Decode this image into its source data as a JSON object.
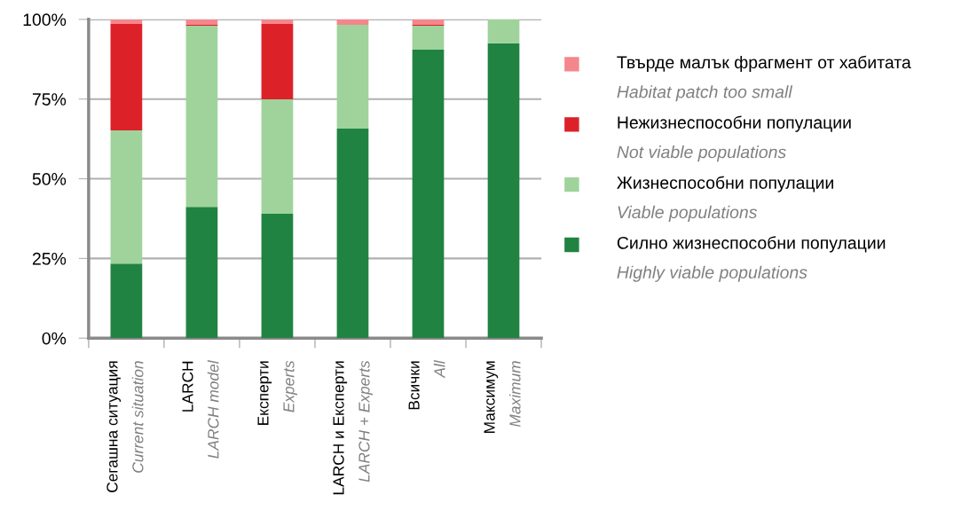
{
  "chart_data": {
    "type": "bar",
    "stacked": true,
    "categories": [
      "Сегашна ситуация\nCurrent situation",
      "LARCH\nLARCH model",
      "Експерти\nExperts",
      "LARCH и Експерти\nLARCH + Experts",
      "Всички\nAll",
      "Максимум\nMaximum"
    ],
    "series": [
      {
        "name": "Силно жизнеспособни популации\nHighly viable populations",
        "color": "#218341",
        "values": [
          23.4,
          41.2,
          39.0,
          65.7,
          90.5,
          92.5
        ]
      },
      {
        "name": "Жизнеспособни популации\nViable populations",
        "color": "#9fd39b",
        "values": [
          41.8,
          56.8,
          35.9,
          32.6,
          7.5,
          7.5
        ]
      },
      {
        "name": "Нежизнеспособни популации\nNot viable populations",
        "color": "#dc2128",
        "values": [
          33.4,
          0.3,
          23.7,
          0,
          0.3,
          0
        ]
      },
      {
        "name": "Твърде малък фрагмент от хабитата\nHabitat patch too small",
        "color": "#f4868c",
        "values": [
          1.4,
          1.7,
          1.4,
          1.7,
          1.7,
          0
        ]
      }
    ],
    "ylim": [
      0,
      100
    ],
    "yticks": [
      {
        "value": 0,
        "label": "0%"
      },
      {
        "value": 25,
        "label": "25%"
      },
      {
        "value": 50,
        "label": "50%"
      },
      {
        "value": 75,
        "label": "75%"
      },
      {
        "value": 100,
        "label": "100%"
      }
    ],
    "grid": "y",
    "legend": "right"
  }
}
